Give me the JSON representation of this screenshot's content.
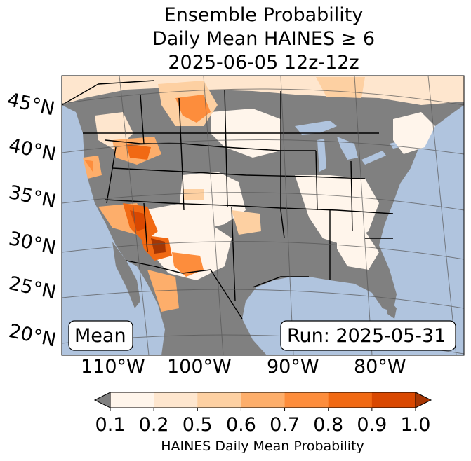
{
  "title": {
    "line1": "Ensemble Probability",
    "line2": "Daily Mean HAINES ≥ 6",
    "line3": "2025-06-05 12z-12z"
  },
  "map": {
    "lat_labels": [
      "45°N",
      "40°N",
      "35°N",
      "30°N",
      "25°N",
      "20°N"
    ],
    "lon_labels": [
      "110°W",
      "100°W",
      "90°W",
      "80°W"
    ],
    "stat_box": "Mean",
    "run_box": "Run: 2025-05-31",
    "colors": {
      "ocean": "#b0c4de",
      "land_missing": "#808080",
      "land_base": "#ffffff"
    }
  },
  "colorbar": {
    "ticks": [
      "0.1",
      "0.2",
      "0.5",
      "0.6",
      "0.7",
      "0.8",
      "0.9",
      "1.0"
    ],
    "label": "HAINES Daily Mean Probability",
    "colors": [
      "#fff5eb",
      "#fee6ce",
      "#fdd0a2",
      "#fdae6b",
      "#fd8d3c",
      "#f16913",
      "#d94801",
      "#a63603"
    ],
    "under_color": "#808080"
  }
}
